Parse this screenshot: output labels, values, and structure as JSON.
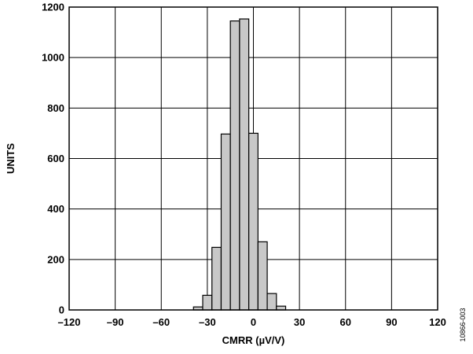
{
  "chart_data": {
    "type": "bar",
    "xlabel": "CMRR (µV/V)",
    "ylabel": "UNITS",
    "xlim": [
      -120,
      120
    ],
    "ylim": [
      0,
      1200
    ],
    "bin_width": 6,
    "x_ticks": [
      -120,
      -90,
      -60,
      -30,
      0,
      30,
      60,
      90,
      120
    ],
    "x_tick_labels": [
      "–120",
      "–90",
      "–60",
      "–30",
      "0",
      "30",
      "60",
      "90",
      "120"
    ],
    "y_ticks": [
      0,
      200,
      400,
      600,
      800,
      1000,
      1200
    ],
    "y_tick_labels": [
      "0",
      "200",
      "400",
      "600",
      "800",
      "1000",
      "1200"
    ],
    "grid": true,
    "bar_color": "#c8c8c8",
    "bars": [
      {
        "x": -39,
        "value": 12
      },
      {
        "x": -33,
        "value": 58
      },
      {
        "x": -27,
        "value": 248
      },
      {
        "x": -21,
        "value": 697
      },
      {
        "x": -15,
        "value": 1145
      },
      {
        "x": -9,
        "value": 1153
      },
      {
        "x": -3,
        "value": 700
      },
      {
        "x": 3,
        "value": 270
      },
      {
        "x": 9,
        "value": 65
      },
      {
        "x": 15,
        "value": 15
      }
    ]
  },
  "doc_id": "10866-003"
}
